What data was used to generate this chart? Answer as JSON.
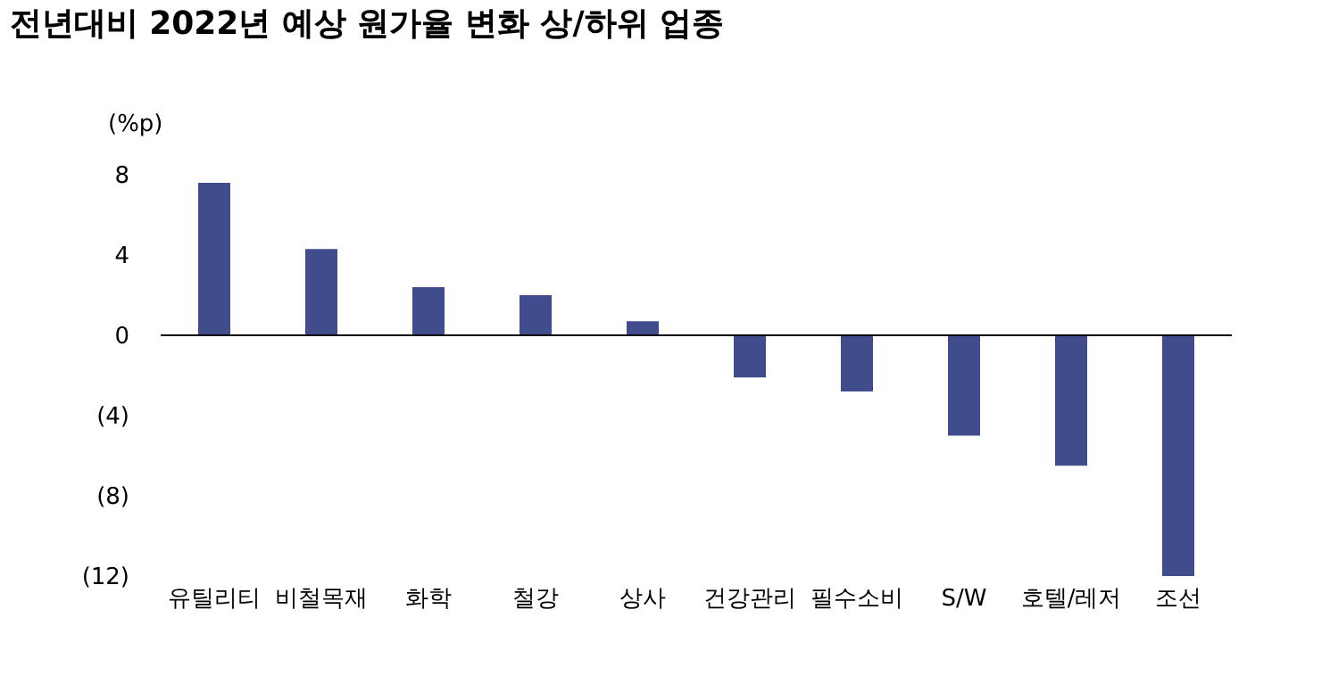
{
  "chart_data": {
    "type": "bar",
    "title": "전년대비 2022년 예상 원가율 변화 상/하위 업종",
    "ylabel": "(%p)",
    "categories": [
      "유틸리티",
      "비철목재",
      "화학",
      "철강",
      "상사",
      "건강관리",
      "필수소비",
      "S/W",
      "호텔/레저",
      "조선"
    ],
    "values": [
      7.6,
      4.3,
      2.4,
      2.0,
      0.7,
      -2.1,
      -2.8,
      -5.0,
      -6.5,
      -12.0
    ],
    "color": "#404c8c",
    "ylim": [
      -12,
      8
    ],
    "yticks": [
      8,
      4,
      0,
      {
        "value": -4,
        "label": "(4)"
      },
      {
        "value": -8,
        "label": "(8)"
      },
      {
        "value": -12,
        "label": "(12)"
      }
    ],
    "ref_lines": [
      {
        "axis": "y",
        "value": 0,
        "color": "#000000"
      }
    ],
    "grid": false
  }
}
